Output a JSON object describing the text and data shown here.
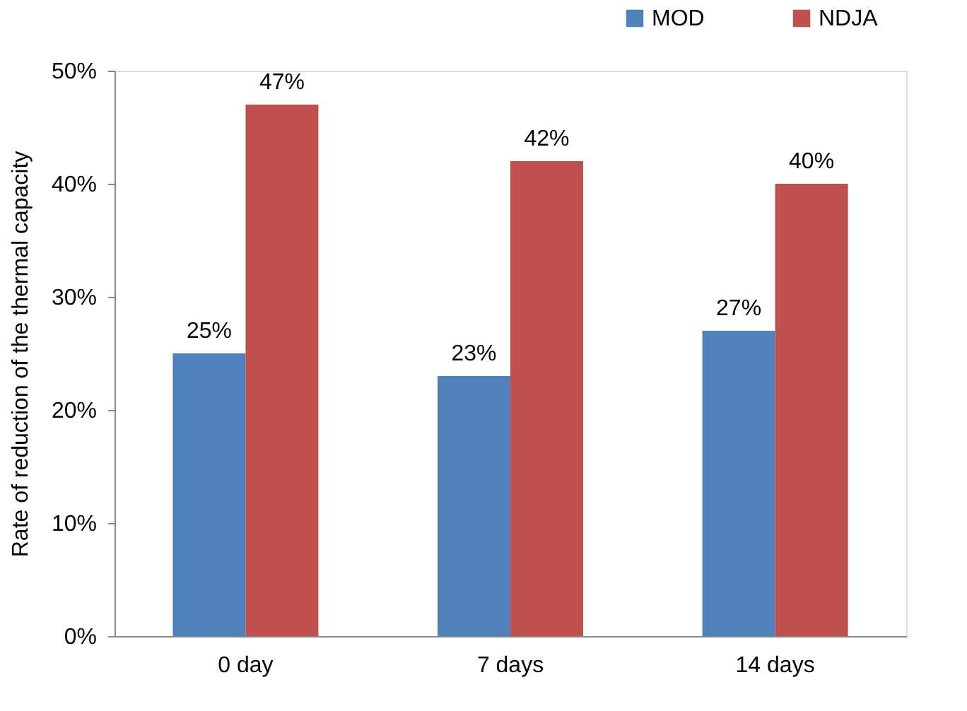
{
  "chart_data": {
    "type": "bar",
    "ylabel": "Rate of reduction of the thermal capacity",
    "categories": [
      "0 day",
      "7 days",
      "14 days"
    ],
    "series": [
      {
        "name": "MOD",
        "color": "#4f81bd",
        "values": [
          25,
          23,
          27
        ],
        "value_labels": [
          "25%",
          "23%",
          "27%"
        ]
      },
      {
        "name": "NDJA",
        "color": "#c0504d",
        "values": [
          47,
          42,
          40
        ],
        "value_labels": [
          "47%",
          "42%",
          "40%"
        ]
      }
    ],
    "ylim": [
      0,
      50
    ],
    "yticks": [
      {
        "value": 0,
        "label": "0%"
      },
      {
        "value": 10,
        "label": "10%"
      },
      {
        "value": 20,
        "label": "20%"
      },
      {
        "value": 30,
        "label": "30%"
      },
      {
        "value": 40,
        "label": "40%"
      },
      {
        "value": 50,
        "label": "50%"
      }
    ],
    "grid": false,
    "legend": "top right"
  }
}
